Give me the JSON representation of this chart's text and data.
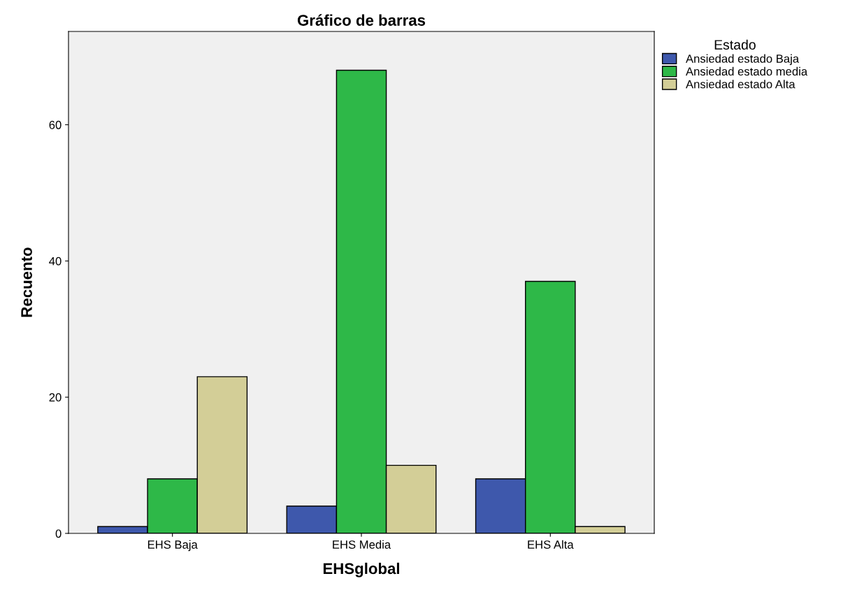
{
  "chart_data": {
    "type": "bar",
    "title": "Gráfico de barras",
    "xlabel": "EHSglobal",
    "ylabel": "Recuento",
    "legend_title": "Estado",
    "categories": [
      "EHS Baja",
      "EHS Media",
      "EHS Alta"
    ],
    "series": [
      {
        "name": "Ansiedad estado Baja",
        "color": "#3e58ac",
        "values": [
          1,
          4,
          8
        ]
      },
      {
        "name": "Ansiedad estado media",
        "color": "#2eb848",
        "values": [
          8,
          68,
          37
        ]
      },
      {
        "name": "Ansiedad estado Alta",
        "color": "#d3ce97",
        "values": [
          23,
          10,
          1
        ]
      }
    ],
    "ylim": [
      0,
      73.7
    ],
    "yticks": [
      0,
      20,
      40,
      60
    ],
    "grid": false,
    "legend": "top right"
  }
}
